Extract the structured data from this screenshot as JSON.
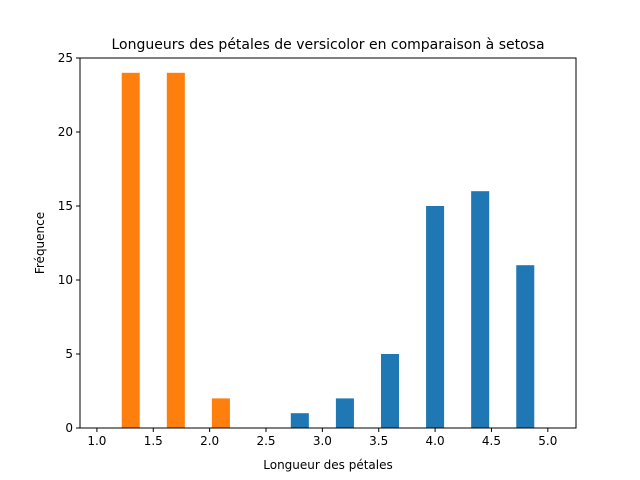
{
  "chart_data": {
    "type": "bar",
    "title": "Longueurs des pétales de versicolor en comparaison à setosa",
    "xlabel": "Longueur des pétales",
    "ylabel": "Fréquence",
    "xlim": [
      0.85,
      5.25
    ],
    "ylim": [
      0,
      25
    ],
    "bar_width": 0.16,
    "x_ticks": [
      1.0,
      1.5,
      2.0,
      2.5,
      3.0,
      3.5,
      4.0,
      4.5,
      5.0
    ],
    "x_tick_labels": [
      "1.0",
      "1.5",
      "2.0",
      "2.5",
      "3.0",
      "3.5",
      "4.0",
      "4.5",
      "5.0"
    ],
    "y_ticks": [
      0,
      5,
      10,
      15,
      20,
      25
    ],
    "y_tick_labels": [
      "0",
      "5",
      "10",
      "15",
      "20",
      "25"
    ],
    "grid": false,
    "legend": "none",
    "series": [
      {
        "color": "#ff7f0e",
        "x": [
          1.3,
          1.7,
          2.1
        ],
        "values": [
          24,
          24,
          2
        ]
      },
      {
        "color": "#1f77b4",
        "x": [
          2.8,
          3.2,
          3.6,
          4.0,
          4.4,
          4.8
        ],
        "values": [
          1,
          2,
          5,
          15,
          16,
          11
        ]
      }
    ]
  }
}
